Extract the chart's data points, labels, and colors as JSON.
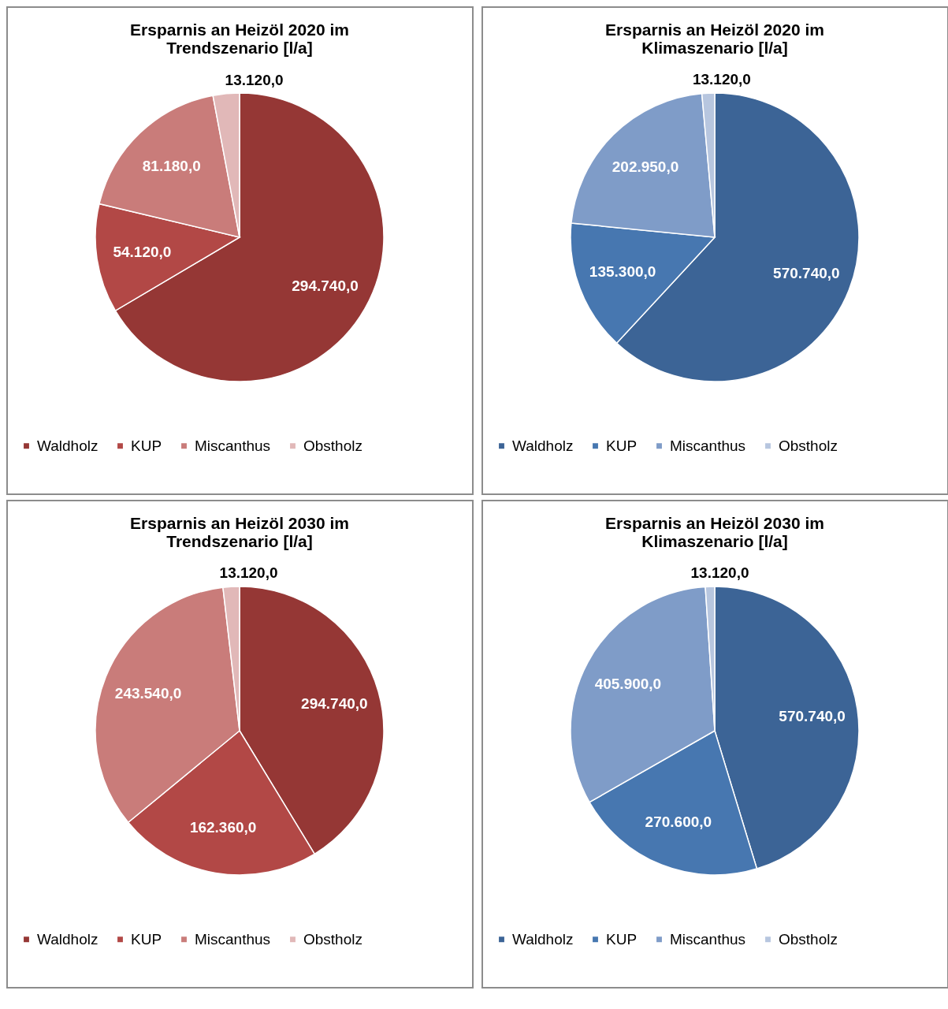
{
  "chart_data": [
    {
      "type": "pie",
      "title": "Ersparnis an Heizöl 2020 im Trendszenario [l/a]",
      "categories": [
        "Waldholz",
        "KUP",
        "Miscanthus",
        "Obstholz"
      ],
      "values": [
        294740,
        54120,
        81180,
        13120
      ],
      "value_labels": [
        "294.740,0",
        "54.120,0",
        "81.180,0",
        "13.120,0"
      ],
      "colors": [
        "#953735",
        "#b24846",
        "#c97c7a",
        "#e1b8b8"
      ],
      "legend": "bottom"
    },
    {
      "type": "pie",
      "title": "Ersparnis an Heizöl 2020 im Klimaszenario [l/a]",
      "categories": [
        "Waldholz",
        "KUP",
        "Miscanthus",
        "Obstholz"
      ],
      "values": [
        570740,
        135300,
        202950,
        13120
      ],
      "value_labels": [
        "570.740,0",
        "135.300,0",
        "202.950,0",
        "13.120,0"
      ],
      "colors": [
        "#3c6496",
        "#4777b0",
        "#7f9cc8",
        "#b7c6df"
      ],
      "legend": "bottom"
    },
    {
      "type": "pie",
      "title": "Ersparnis an Heizöl 2030 im Trendszenario [l/a]",
      "categories": [
        "Waldholz",
        "KUP",
        "Miscanthus",
        "Obstholz"
      ],
      "values": [
        294740,
        162360,
        243540,
        13120
      ],
      "value_labels": [
        "294.740,0",
        "162.360,0",
        "243.540,0",
        "13.120,0"
      ],
      "colors": [
        "#953735",
        "#b24846",
        "#c97c7a",
        "#e1b8b8"
      ],
      "legend": "bottom"
    },
    {
      "type": "pie",
      "title": "Ersparnis an Heizöl 2030 im Klimaszenario [l/a]",
      "categories": [
        "Waldholz",
        "KUP",
        "Miscanthus",
        "Obstholz"
      ],
      "values": [
        570740,
        270600,
        405900,
        13120
      ],
      "value_labels": [
        "570.740,0",
        "270.600,0",
        "405.900,0",
        "13.120,0"
      ],
      "colors": [
        "#3c6496",
        "#4777b0",
        "#7f9cc8",
        "#b7c6df"
      ],
      "legend": "bottom"
    }
  ]
}
